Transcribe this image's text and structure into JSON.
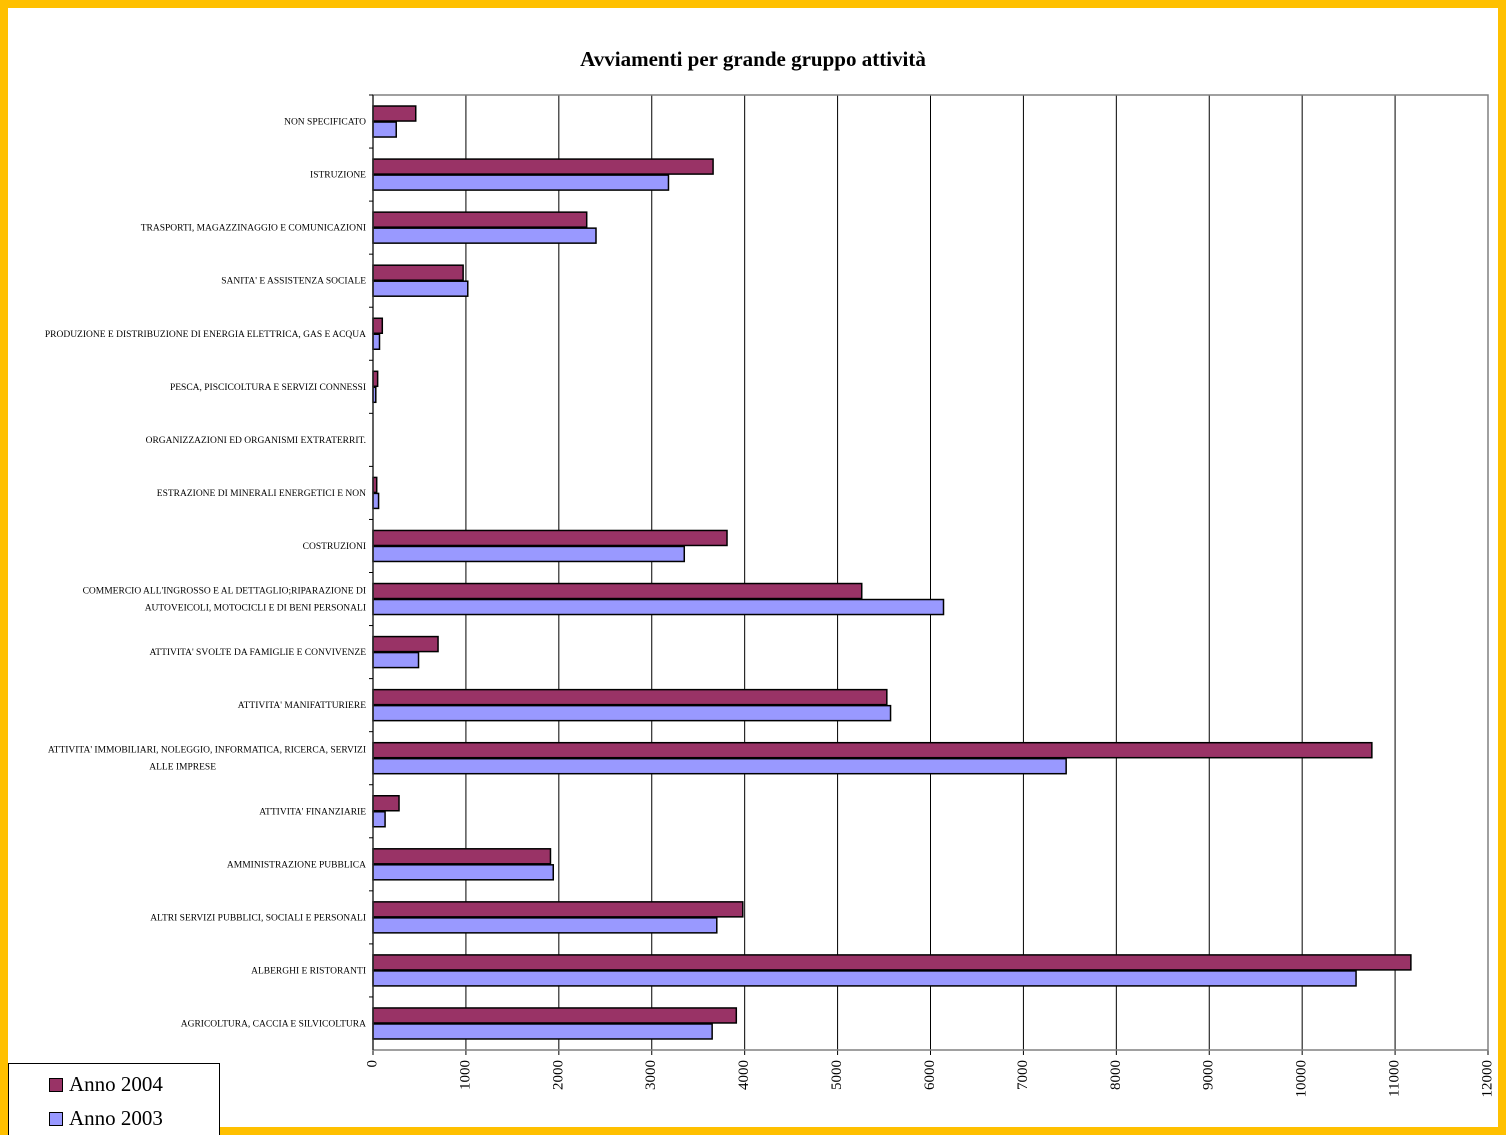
{
  "chart_data": {
    "type": "bar",
    "orientation": "horizontal",
    "title": "Avviamenti per grande gruppo attività",
    "categories": [
      "AGRICOLTURA, CACCIA E SILVICOLTURA",
      "ALBERGHI E RISTORANTI",
      "ALTRI SERVIZI PUBBLICI, SOCIALI E PERSONALI",
      "AMMINISTRAZIONE PUBBLICA",
      "ATTIVITA' FINANZIARIE",
      "ATTIVITA' IMMOBILIARI, NOLEGGIO, INFORMATICA, RICERCA, SERVIZI ALLE IMPRESE",
      "ATTIVITA' MANIFATTURIERE",
      "ATTIVITA' SVOLTE DA FAMIGLIE E CONVIVENZE",
      "COMMERCIO ALL'INGROSSO E AL DETTAGLIO;RIPARAZIONE DI AUTOVEICOLI, MOTOCICLI E DI BENI PERSONALI",
      "COSTRUZIONI",
      "ESTRAZIONE DI MINERALI ENERGETICI E NON",
      "ORGANIZZAZIONI ED ORGANISMI EXTRATERRIT.",
      "PESCA, PISCICOLTURA E SERVIZI CONNESSI",
      "PRODUZIONE E DISTRIBUZIONE DI ENERGIA ELETTRICA, GAS E ACQUA",
      "SANITA' E ASSISTENZA SOCIALE",
      "TRASPORTI, MAGAZZINAGGIO E COMUNICAZIONI",
      "ISTRUZIONE",
      "NON SPECIFICATO"
    ],
    "category_lines": [
      [
        "AGRICOLTURA, CACCIA E SILVICOLTURA"
      ],
      [
        "ALBERGHI E RISTORANTI"
      ],
      [
        "ALTRI SERVIZI PUBBLICI, SOCIALI E PERSONALI"
      ],
      [
        "AMMINISTRAZIONE PUBBLICA"
      ],
      [
        "ATTIVITA' FINANZIARIE"
      ],
      [
        "ATTIVITA' IMMOBILIARI, NOLEGGIO, INFORMATICA, RICERCA, SERVIZI",
        "ALLE IMPRESE"
      ],
      [
        "ATTIVITA' MANIFATTURIERE"
      ],
      [
        "ATTIVITA' SVOLTE DA FAMIGLIE E CONVIVENZE"
      ],
      [
        "COMMERCIO ALL'INGROSSO E AL DETTAGLIO;RIPARAZIONE DI",
        "AUTOVEICOLI, MOTOCICLI E DI BENI PERSONALI"
      ],
      [
        "COSTRUZIONI"
      ],
      [
        "ESTRAZIONE DI MINERALI ENERGETICI E NON"
      ],
      [
        "ORGANIZZAZIONI ED ORGANISMI EXTRATERRIT."
      ],
      [
        "PESCA, PISCICOLTURA E SERVIZI CONNESSI"
      ],
      [
        "PRODUZIONE E DISTRIBUZIONE DI ENERGIA ELETTRICA, GAS E ACQUA"
      ],
      [
        "SANITA' E ASSISTENZA SOCIALE"
      ],
      [
        "TRASPORTI, MAGAZZINAGGIO E COMUNICAZIONI"
      ],
      [
        "ISTRUZIONE"
      ],
      [
        "NON SPECIFICATO"
      ]
    ],
    "series": [
      {
        "name": "Anno 2004",
        "color": "#993366",
        "values": [
          3910,
          11170,
          3980,
          1910,
          280,
          10750,
          5530,
          700,
          5260,
          3810,
          40,
          0,
          50,
          100,
          970,
          2300,
          3660,
          460
        ]
      },
      {
        "name": "Anno 2003",
        "color": "#9999FF",
        "values": [
          3650,
          10580,
          3700,
          1940,
          130,
          7460,
          5570,
          490,
          6140,
          3350,
          60,
          0,
          30,
          70,
          1020,
          2400,
          3180,
          250
        ]
      }
    ],
    "xlim": [
      0,
      12000
    ],
    "xticks": [
      "0",
      "1000",
      "2000",
      "3000",
      "4000",
      "5000",
      "6000",
      "7000",
      "8000",
      "9000",
      "10000",
      "11000",
      "12000"
    ],
    "grid": true,
    "legend_position": "bottom-left",
    "colors": {
      "background": "#FFC000",
      "plot_border": "#808080",
      "gridline": "#000000"
    }
  }
}
